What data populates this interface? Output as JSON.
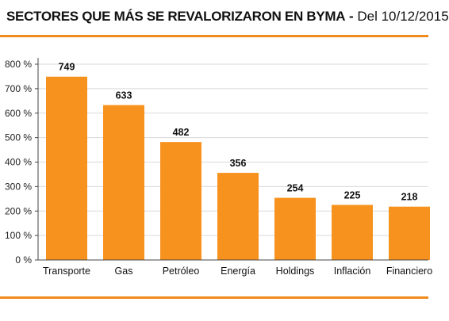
{
  "header": {
    "title": "SECTORES QUE MÁS SE REVALORIZARON EN BYMA",
    "separator": " - ",
    "date_range": "Del 10/12/2015"
  },
  "colors": {
    "bar": "#f8921e",
    "accent_rule": "#f08a1c",
    "axis": "#444444",
    "grid": "#d9d9d9"
  },
  "chart_data": {
    "type": "bar",
    "title": "SECTORES QUE MÁS SE REVALORIZARON EN BYMA - Del 10/12/2015",
    "xlabel": "",
    "ylabel": "",
    "categories": [
      "Transporte",
      "Gas",
      "Petróleo",
      "Energía",
      "Holdings",
      "Inflación",
      "Financiero"
    ],
    "values": [
      749,
      633,
      482,
      356,
      254,
      225,
      218
    ],
    "value_labels": [
      "749",
      "633",
      "482",
      "356",
      "254",
      "225",
      "218"
    ],
    "ylim": [
      0,
      800
    ],
    "yticks": [
      0,
      100,
      200,
      300,
      400,
      500,
      600,
      700,
      800
    ],
    "ytick_labels": [
      "0 %",
      "100 %",
      "200 %",
      "300 %",
      "400 %",
      "500 %",
      "600 %",
      "700 %",
      "800 %"
    ],
    "grid": true,
    "legend": "none"
  }
}
